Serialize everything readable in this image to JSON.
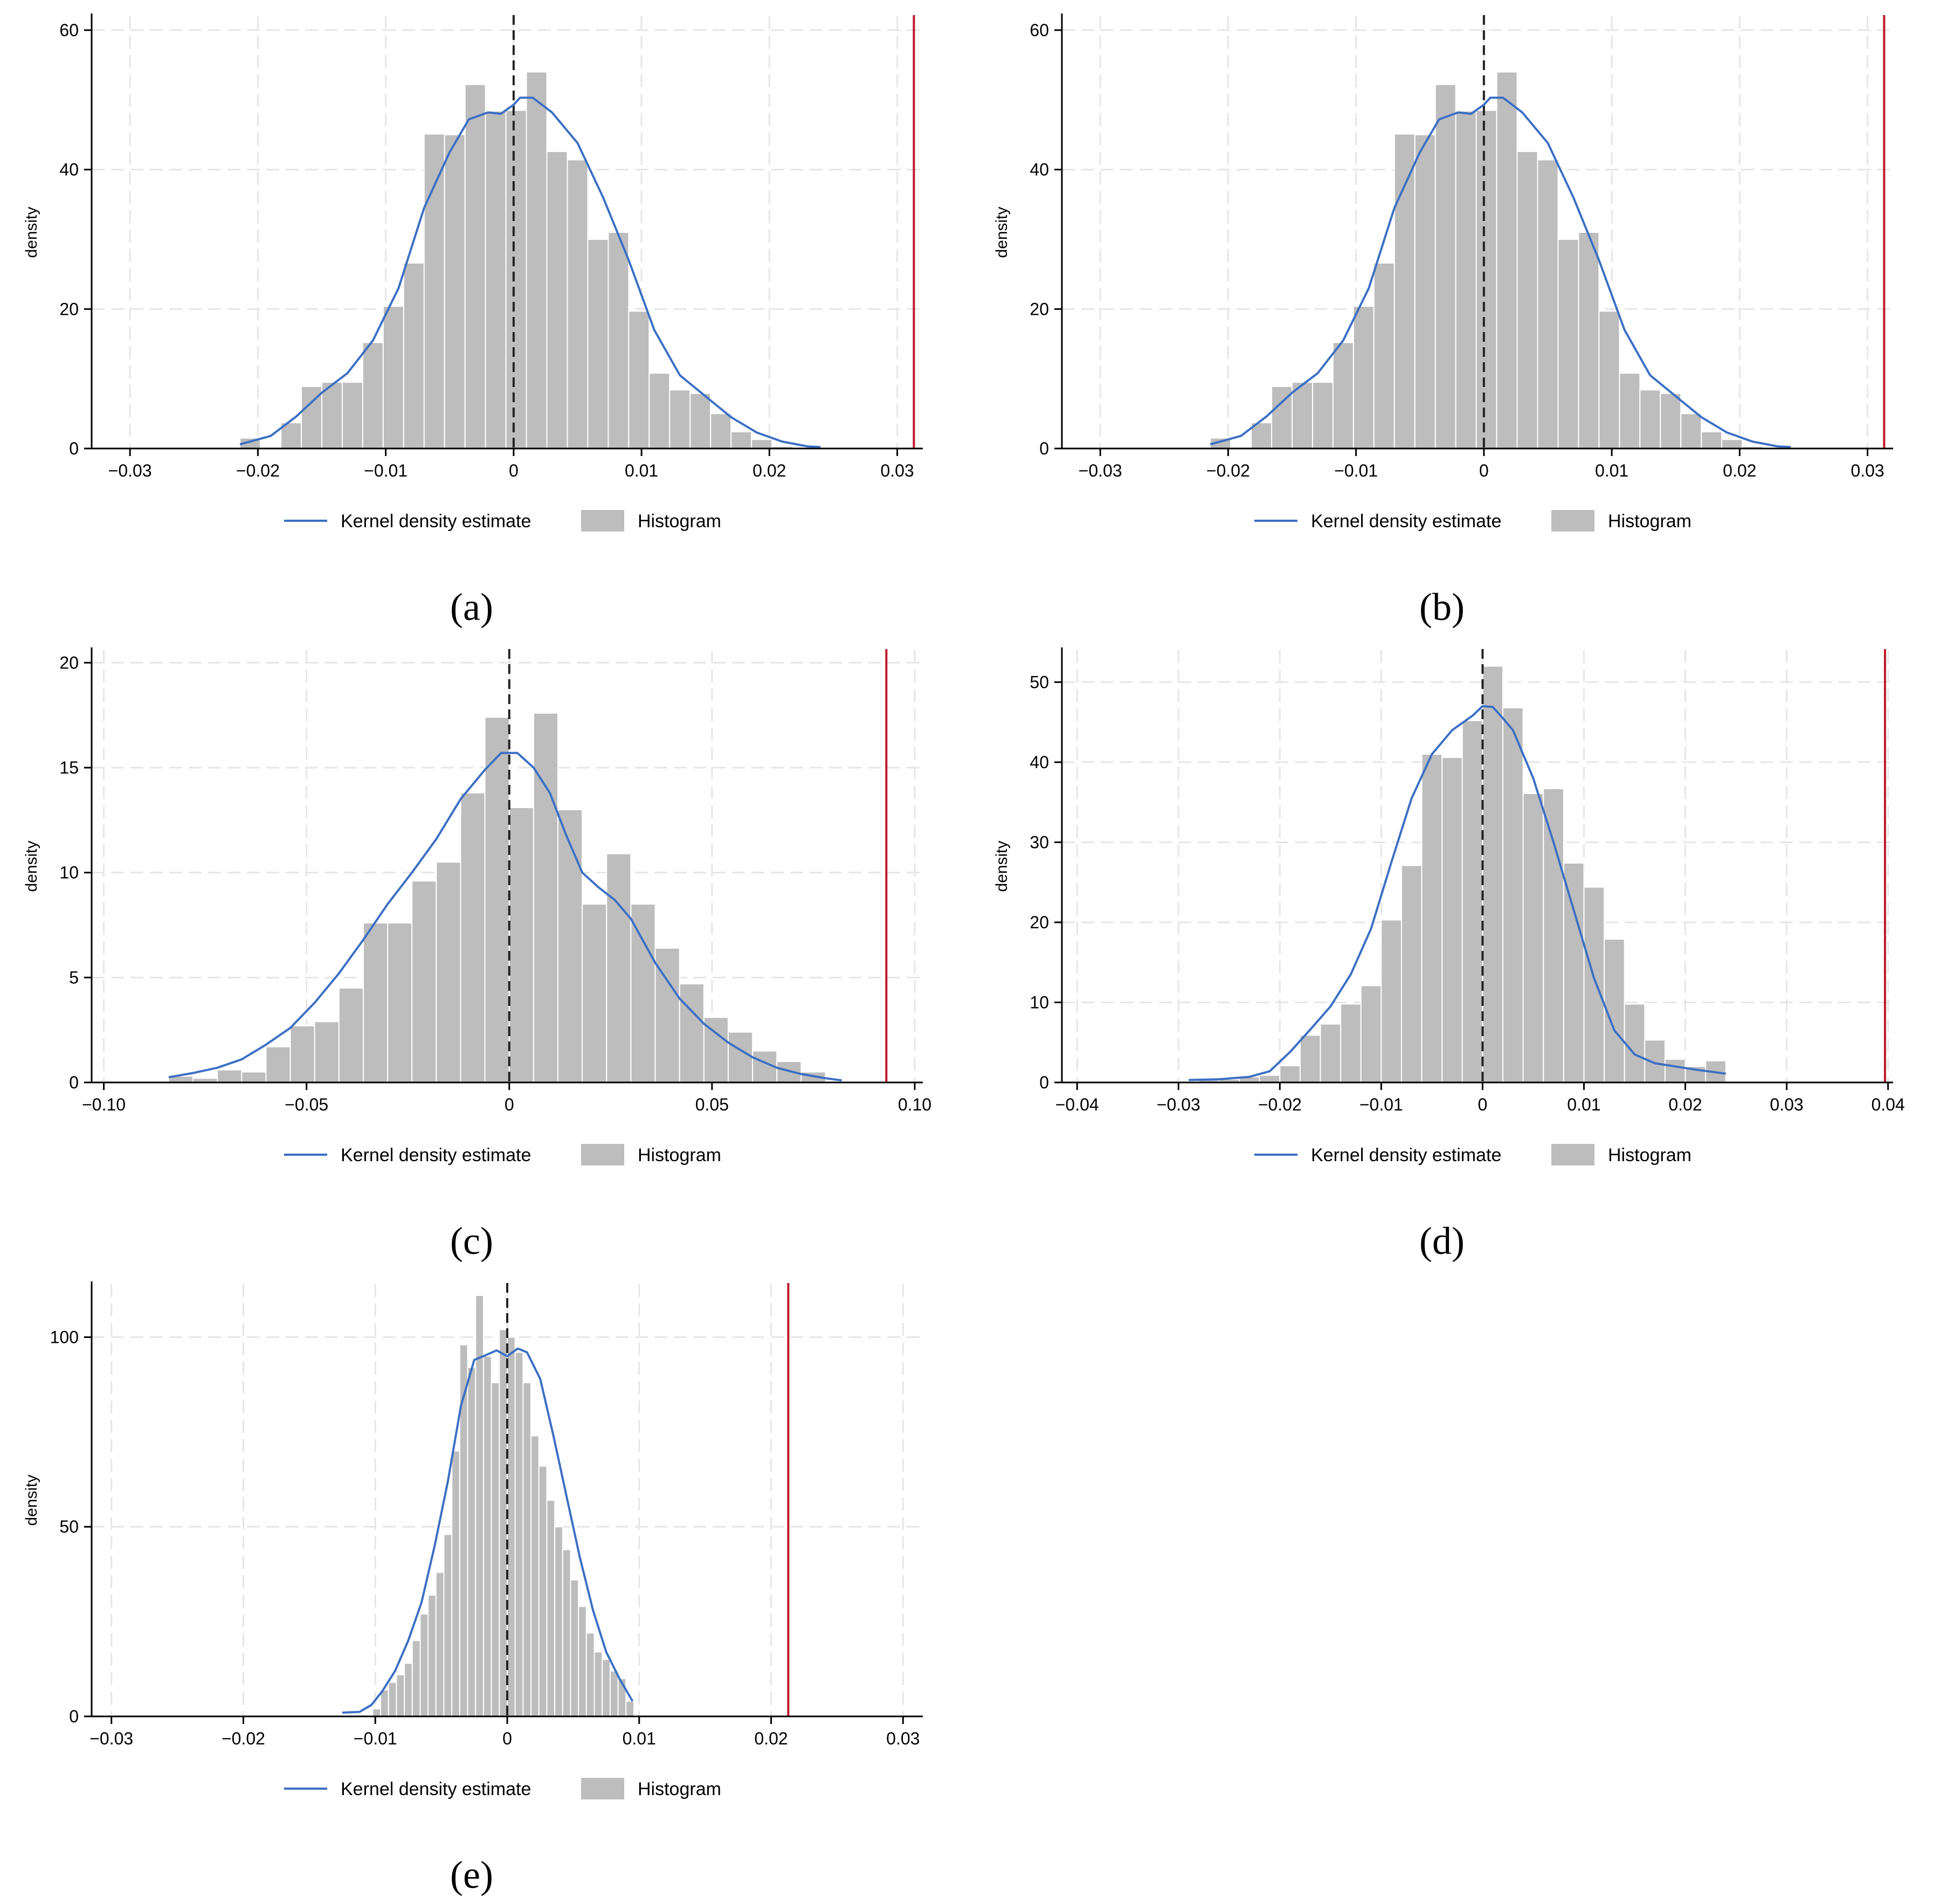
{
  "legend": {
    "kde": "Kernel density estimate",
    "hist": "Histogram"
  },
  "colors": {
    "kde": "#3b6fc4",
    "hist": "#bdbdbd",
    "red": "#c0182a",
    "grid": "#e6e6e6"
  },
  "chart_data": [
    {
      "id": "a",
      "caption": "(a)",
      "type": "histogram",
      "ylabel": "density",
      "xlim": [
        -0.033,
        0.032
      ],
      "ylim": [
        0,
        62
      ],
      "xticks": [
        -0.03,
        -0.02,
        -0.01,
        0,
        0.01,
        0.02,
        0.03
      ],
      "xtick_labels": [
        "−0.03",
        "−0.02",
        "−0.01",
        "0",
        "0.01",
        "0.02",
        "0.03"
      ],
      "yticks": [
        0,
        20,
        40,
        60
      ],
      "ytick_labels": [
        "0",
        "20",
        "40",
        "60"
      ],
      "vline_zero": 0,
      "vline_red": 0.0313,
      "bins": [
        -0.0214,
        -0.0198,
        -0.0182,
        -0.0166,
        -0.015,
        -0.0134,
        -0.0118,
        -0.0102,
        -0.0086,
        -0.007,
        -0.0054,
        -0.0038,
        -0.0022,
        -0.0006,
        0.001,
        0.0026,
        0.0042,
        0.0058,
        0.0074,
        0.009,
        0.0106,
        0.0122,
        0.0138,
        0.0154,
        0.017,
        0.0186,
        0.0202,
        0.0218
      ],
      "hist": [
        1.5,
        0,
        3.7,
        8.9,
        9.5,
        9.5,
        15.2,
        20.4,
        26.6,
        45.1,
        45.0,
        52.2,
        48.4,
        48.5,
        54.0,
        42.6,
        41.4,
        30.0,
        31.0,
        19.7,
        10.8,
        8.4,
        7.9,
        5.0,
        2.4,
        1.3,
        0.3
      ],
      "kde": [
        [
          -0.0214,
          0.6
        ],
        [
          -0.019,
          1.8
        ],
        [
          -0.017,
          4.6
        ],
        [
          -0.015,
          8.0
        ],
        [
          -0.013,
          10.8
        ],
        [
          -0.011,
          15.5
        ],
        [
          -0.009,
          23.0
        ],
        [
          -0.007,
          34.5
        ],
        [
          -0.005,
          42.5
        ],
        [
          -0.0035,
          47.2
        ],
        [
          -0.002,
          48.2
        ],
        [
          -0.001,
          48.0
        ],
        [
          0,
          49.3
        ],
        [
          0.0005,
          50.3
        ],
        [
          0.0015,
          50.3
        ],
        [
          0.003,
          48.2
        ],
        [
          0.005,
          43.8
        ],
        [
          0.007,
          36.0
        ],
        [
          0.009,
          27.0
        ],
        [
          0.011,
          17.0
        ],
        [
          0.013,
          10.5
        ],
        [
          0.015,
          7.5
        ],
        [
          0.017,
          4.5
        ],
        [
          0.019,
          2.3
        ],
        [
          0.021,
          1.0
        ],
        [
          0.023,
          0.3
        ],
        [
          0.024,
          0.2
        ]
      ]
    },
    {
      "id": "b",
      "caption": "(b)",
      "type": "histogram",
      "ylabel": "density",
      "xlim": [
        -0.033,
        0.032
      ],
      "ylim": [
        0,
        62
      ],
      "xticks": [
        -0.03,
        -0.02,
        -0.01,
        0,
        0.01,
        0.02,
        0.03
      ],
      "xtick_labels": [
        "−0.03",
        "−0.02",
        "−0.01",
        "0",
        "0.01",
        "0.02",
        "0.03"
      ],
      "yticks": [
        0,
        20,
        40,
        60
      ],
      "ytick_labels": [
        "0",
        "20",
        "40",
        "60"
      ],
      "vline_zero": 0,
      "vline_red": 0.0313,
      "bins": [
        -0.0214,
        -0.0198,
        -0.0182,
        -0.0166,
        -0.015,
        -0.0134,
        -0.0118,
        -0.0102,
        -0.0086,
        -0.007,
        -0.0054,
        -0.0038,
        -0.0022,
        -0.0006,
        0.001,
        0.0026,
        0.0042,
        0.0058,
        0.0074,
        0.009,
        0.0106,
        0.0122,
        0.0138,
        0.0154,
        0.017,
        0.0186,
        0.0202,
        0.0218
      ],
      "hist": [
        1.5,
        0,
        3.7,
        8.9,
        9.5,
        9.5,
        15.2,
        20.4,
        26.6,
        45.1,
        45.0,
        52.2,
        48.4,
        48.5,
        54.0,
        42.6,
        41.4,
        30.0,
        31.0,
        19.7,
        10.8,
        8.4,
        7.9,
        5.0,
        2.4,
        1.3,
        0.3
      ],
      "kde": [
        [
          -0.0214,
          0.6
        ],
        [
          -0.019,
          1.8
        ],
        [
          -0.017,
          4.6
        ],
        [
          -0.015,
          8.0
        ],
        [
          -0.013,
          10.8
        ],
        [
          -0.011,
          15.5
        ],
        [
          -0.009,
          23.0
        ],
        [
          -0.007,
          34.5
        ],
        [
          -0.005,
          42.5
        ],
        [
          -0.0035,
          47.2
        ],
        [
          -0.002,
          48.2
        ],
        [
          -0.001,
          48.0
        ],
        [
          0,
          49.3
        ],
        [
          0.0005,
          50.3
        ],
        [
          0.0015,
          50.3
        ],
        [
          0.003,
          48.2
        ],
        [
          0.005,
          43.8
        ],
        [
          0.007,
          36.0
        ],
        [
          0.009,
          27.0
        ],
        [
          0.011,
          17.0
        ],
        [
          0.013,
          10.5
        ],
        [
          0.015,
          7.5
        ],
        [
          0.017,
          4.5
        ],
        [
          0.019,
          2.3
        ],
        [
          0.021,
          1.0
        ],
        [
          0.023,
          0.3
        ],
        [
          0.024,
          0.2
        ]
      ]
    },
    {
      "id": "c",
      "caption": "(c)",
      "type": "histogram",
      "ylabel": "density",
      "xlim": [
        -0.103,
        0.102
      ],
      "ylim": [
        0,
        20.6
      ],
      "xticks": [
        -0.1,
        -0.05,
        0,
        0.05,
        0.1
      ],
      "xtick_labels": [
        "−0.10",
        "−0.05",
        "0",
        "0.05",
        "0.10"
      ],
      "yticks": [
        0,
        5,
        10,
        15,
        20
      ],
      "ytick_labels": [
        "0",
        "5",
        "10",
        "15",
        "20"
      ],
      "vline_zero": 0,
      "vline_red": 0.093,
      "bins": [
        -0.084,
        -0.078,
        -0.072,
        -0.066,
        -0.06,
        -0.054,
        -0.048,
        -0.042,
        -0.036,
        -0.03,
        -0.024,
        -0.018,
        -0.012,
        -0.006,
        0,
        0.006,
        0.012,
        0.018,
        0.024,
        0.03,
        0.036,
        0.042,
        0.048,
        0.054,
        0.06,
        0.066,
        0.072,
        0.078
      ],
      "hist": [
        0.3,
        0.2,
        0.6,
        0.5,
        1.7,
        2.7,
        2.9,
        4.5,
        7.6,
        7.6,
        9.6,
        10.5,
        13.8,
        17.4,
        13.1,
        17.6,
        13.0,
        8.5,
        10.9,
        8.5,
        6.4,
        4.7,
        3.1,
        2.4,
        1.5,
        1.0,
        0.5
      ],
      "kde": [
        [
          -0.084,
          0.25
        ],
        [
          -0.078,
          0.45
        ],
        [
          -0.072,
          0.7
        ],
        [
          -0.066,
          1.1
        ],
        [
          -0.06,
          1.8
        ],
        [
          -0.054,
          2.6
        ],
        [
          -0.048,
          3.8
        ],
        [
          -0.042,
          5.2
        ],
        [
          -0.036,
          6.8
        ],
        [
          -0.03,
          8.5
        ],
        [
          -0.024,
          10.0
        ],
        [
          -0.018,
          11.6
        ],
        [
          -0.012,
          13.5
        ],
        [
          -0.006,
          14.9
        ],
        [
          -0.002,
          15.7
        ],
        [
          0.002,
          15.7
        ],
        [
          0.006,
          15.0
        ],
        [
          0.01,
          13.8
        ],
        [
          0.014,
          11.8
        ],
        [
          0.018,
          10.0
        ],
        [
          0.022,
          9.3
        ],
        [
          0.026,
          8.7
        ],
        [
          0.03,
          7.8
        ],
        [
          0.036,
          5.7
        ],
        [
          0.042,
          4.0
        ],
        [
          0.048,
          2.8
        ],
        [
          0.054,
          1.9
        ],
        [
          0.06,
          1.2
        ],
        [
          0.066,
          0.7
        ],
        [
          0.072,
          0.4
        ],
        [
          0.078,
          0.2
        ],
        [
          0.082,
          0.1
        ]
      ]
    },
    {
      "id": "d",
      "caption": "(d)",
      "type": "histogram",
      "ylabel": "density",
      "xlim": [
        -0.0415,
        0.0405
      ],
      "ylim": [
        0,
        54
      ],
      "xticks": [
        -0.04,
        -0.03,
        -0.02,
        -0.01,
        0,
        0.01,
        0.02,
        0.03,
        0.04
      ],
      "xtick_labels": [
        "−0.04",
        "−0.03",
        "−0.02",
        "−0.01",
        "0",
        "0.01",
        "0.02",
        "0.03",
        "0.04"
      ],
      "yticks": [
        0,
        10,
        20,
        30,
        40,
        50
      ],
      "ytick_labels": [
        "0",
        "10",
        "20",
        "30",
        "40",
        "50"
      ],
      "vline_zero": 0,
      "vline_red": 0.0397,
      "bins": [
        -0.028,
        -0.026,
        -0.024,
        -0.022,
        -0.02,
        -0.018,
        -0.016,
        -0.014,
        -0.012,
        -0.01,
        -0.008,
        -0.006,
        -0.004,
        -0.002,
        0,
        0.002,
        0.004,
        0.006,
        0.008,
        0.01,
        0.012,
        0.014,
        0.016,
        0.018,
        0.02,
        0.022,
        0.024
      ],
      "hist": [
        0.3,
        0.4,
        0.7,
        0.9,
        2.1,
        5.9,
        7.3,
        9.8,
        12.1,
        20.3,
        27.1,
        41.0,
        40.6,
        45.2,
        52.0,
        46.8,
        36.1,
        36.7,
        27.4,
        24.4,
        17.9,
        9.8,
        5.3,
        2.9,
        2.0,
        2.7
      ],
      "kde": [
        [
          -0.029,
          0.3
        ],
        [
          -0.026,
          0.4
        ],
        [
          -0.023,
          0.7
        ],
        [
          -0.021,
          1.4
        ],
        [
          -0.019,
          3.8
        ],
        [
          -0.017,
          6.6
        ],
        [
          -0.015,
          9.5
        ],
        [
          -0.013,
          13.5
        ],
        [
          -0.011,
          19.2
        ],
        [
          -0.009,
          27.5
        ],
        [
          -0.007,
          35.5
        ],
        [
          -0.005,
          41.0
        ],
        [
          -0.003,
          44.0
        ],
        [
          -0.001,
          45.8
        ],
        [
          0,
          47.0
        ],
        [
          0.001,
          46.9
        ],
        [
          0.002,
          45.5
        ],
        [
          0.003,
          44.0
        ],
        [
          0.005,
          38.0
        ],
        [
          0.007,
          30.0
        ],
        [
          0.009,
          21.5
        ],
        [
          0.011,
          13.0
        ],
        [
          0.013,
          6.5
        ],
        [
          0.015,
          3.5
        ],
        [
          0.017,
          2.4
        ],
        [
          0.019,
          2.0
        ],
        [
          0.021,
          1.6
        ],
        [
          0.024,
          1.1
        ]
      ]
    },
    {
      "id": "e",
      "caption": "(e)",
      "type": "histogram",
      "ylabel": "density",
      "xlim": [
        -0.0315,
        0.0315
      ],
      "ylim": [
        0,
        114
      ],
      "xticks": [
        -0.03,
        -0.02,
        -0.01,
        0,
        0.01,
        0.02,
        0.03
      ],
      "xtick_labels": [
        "−0.03",
        "−0.02",
        "−0.01",
        "0",
        "0.01",
        "0.02",
        "0.03"
      ],
      "yticks": [
        0,
        50,
        100
      ],
      "ytick_labels": [
        "0",
        "50",
        "100"
      ],
      "vline_zero": 0,
      "vline_red": 0.0213,
      "bins": [
        -0.0102,
        -0.0096,
        -0.009,
        -0.0084,
        -0.0078,
        -0.0072,
        -0.0066,
        -0.006,
        -0.0054,
        -0.0048,
        -0.0042,
        -0.0036,
        -0.003,
        -0.0024,
        -0.0018,
        -0.0012,
        -0.0006,
        0,
        0.0006,
        0.0012,
        0.0018,
        0.0024,
        0.003,
        0.0036,
        0.0042,
        0.0048,
        0.0054,
        0.006,
        0.0066,
        0.0072,
        0.0078,
        0.0084,
        0.009,
        0.0096
      ],
      "hist": [
        2,
        7,
        9,
        11,
        14,
        20,
        27,
        32,
        38,
        48,
        70,
        98,
        92,
        111,
        95,
        88,
        102,
        100,
        96,
        88,
        74,
        66,
        57,
        50,
        44,
        36,
        29,
        22,
        17,
        15,
        12,
        10,
        4
      ],
      "kde": [
        [
          -0.0125,
          1.0
        ],
        [
          -0.0112,
          1.2
        ],
        [
          -0.0103,
          3.0
        ],
        [
          -0.0095,
          6.5
        ],
        [
          -0.0085,
          12.0
        ],
        [
          -0.0075,
          20.0
        ],
        [
          -0.0065,
          30.0
        ],
        [
          -0.0055,
          45.0
        ],
        [
          -0.0045,
          62.0
        ],
        [
          -0.0035,
          82.0
        ],
        [
          -0.0025,
          94.0
        ],
        [
          -0.0018,
          95.0
        ],
        [
          -0.0008,
          96.5
        ],
        [
          0,
          95.0
        ],
        [
          0.0008,
          97.0
        ],
        [
          0.0015,
          96.0
        ],
        [
          0.0025,
          89.0
        ],
        [
          0.0035,
          74.0
        ],
        [
          0.0045,
          58.0
        ],
        [
          0.0055,
          42.0
        ],
        [
          0.0065,
          28.0
        ],
        [
          0.0075,
          17.0
        ],
        [
          0.0085,
          10.0
        ],
        [
          0.0095,
          4.0
        ]
      ]
    }
  ]
}
